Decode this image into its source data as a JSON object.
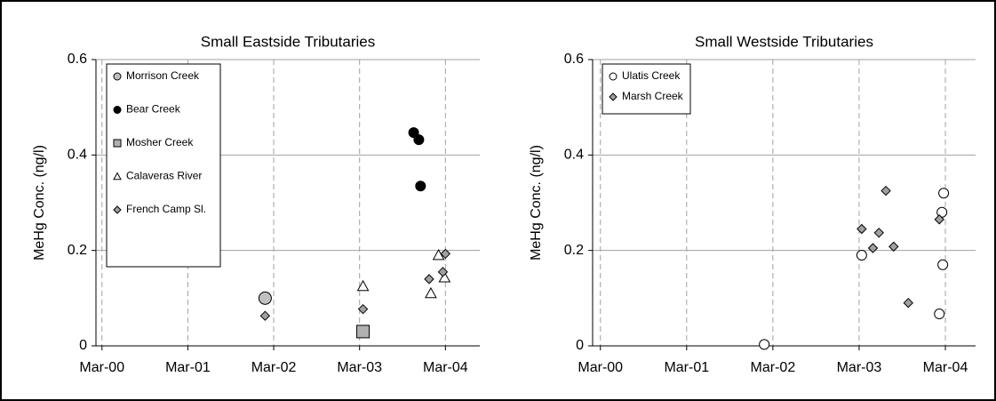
{
  "chart_data": [
    {
      "type": "scatter",
      "title": "Small Eastside Tributaries",
      "y_label": "MeHg Conc. (ng/l)",
      "xlim": [
        2000.13,
        2004.6
      ],
      "ylim": [
        0,
        0.6
      ],
      "yticks": [
        0,
        0.2,
        0.4,
        0.6
      ],
      "xticks": [
        {
          "value": 2000.2,
          "label": "Mar-00"
        },
        {
          "value": 2001.2,
          "label": "Mar-01"
        },
        {
          "value": 2002.2,
          "label": "Mar-02"
        },
        {
          "value": 2003.2,
          "label": "Mar-03"
        },
        {
          "value": 2004.2,
          "label": "Mar-04"
        }
      ],
      "grid": true,
      "series": [
        {
          "name": "Morrison Creek",
          "color": "#c0c0c0",
          "marker": "circle-large",
          "x": [
            2002.1
          ],
          "values": [
            0.1
          ]
        },
        {
          "name": "Bear Creek",
          "color": "#000000",
          "marker": "circle",
          "x": [
            2003.83,
            2003.89,
            2003.91
          ],
          "values": [
            0.447,
            0.432,
            0.335
          ]
        },
        {
          "name": "Mosher Creek",
          "color": "#b0b0b0",
          "marker": "square",
          "x": [
            2003.24
          ],
          "values": [
            0.03
          ]
        },
        {
          "name": "Calaveras River",
          "color": "#ffffff",
          "marker": "triangle",
          "x": [
            2003.24,
            2004.03,
            2004.12,
            2004.19
          ],
          "values": [
            0.125,
            0.11,
            0.19,
            0.143
          ]
        },
        {
          "name": "French Camp Sl.",
          "color": "#a0a0a0",
          "marker": "diamond",
          "x": [
            2002.1,
            2003.24,
            2004.01,
            2004.17,
            2004.2
          ],
          "values": [
            0.063,
            0.077,
            0.14,
            0.155,
            0.193
          ]
        }
      ]
    },
    {
      "type": "scatter",
      "title": "Small Westside Tributaries",
      "y_label": "MeHg Conc. (ng/l)",
      "xlim": [
        2000.11,
        2004.55
      ],
      "ylim": [
        0,
        0.6
      ],
      "yticks": [
        0,
        0.2,
        0.4,
        0.6
      ],
      "xticks": [
        {
          "value": 2000.2,
          "label": "Mar-00"
        },
        {
          "value": 2001.2,
          "label": "Mar-01"
        },
        {
          "value": 2002.2,
          "label": "Mar-02"
        },
        {
          "value": 2003.2,
          "label": "Mar-03"
        },
        {
          "value": 2004.2,
          "label": "Mar-04"
        }
      ],
      "grid": true,
      "series": [
        {
          "name": "Ulatis Creek",
          "color": "#ffffff",
          "marker": "circle",
          "x": [
            2002.1,
            2003.23,
            2004.16,
            2004.18,
            2004.17,
            2004.13
          ],
          "values": [
            0.003,
            0.19,
            0.28,
            0.32,
            0.17,
            0.067
          ]
        },
        {
          "name": "Marsh Creek",
          "color": "#a0a0a0",
          "marker": "diamond",
          "x": [
            2003.23,
            2003.36,
            2003.43,
            2003.51,
            2003.6,
            2003.77,
            2004.13
          ],
          "values": [
            0.245,
            0.205,
            0.237,
            0.325,
            0.208,
            0.09,
            0.265
          ]
        }
      ]
    }
  ]
}
